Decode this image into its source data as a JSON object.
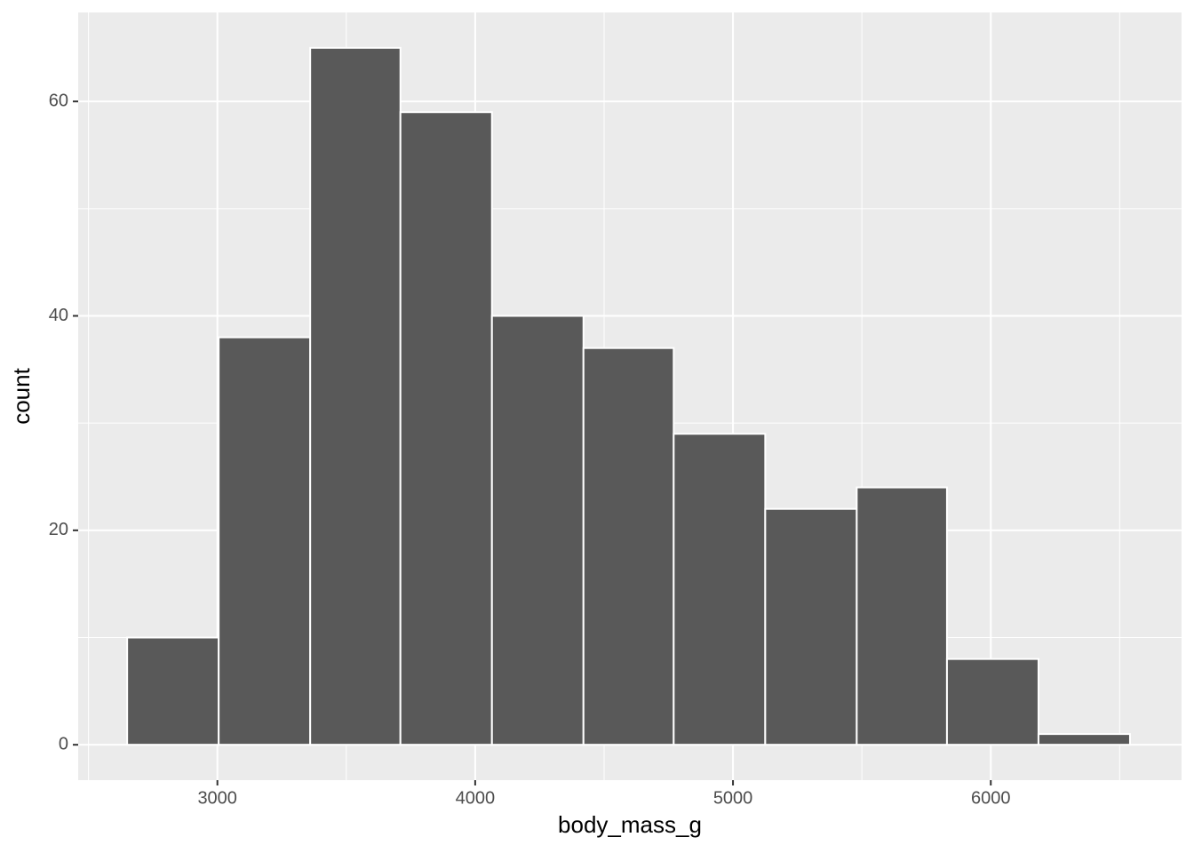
{
  "chart_data": {
    "type": "histogram",
    "x_label": "body_mass_g",
    "y_label": "count",
    "bins": [
      2650,
      3005,
      3360,
      3710,
      4065,
      4420,
      4770,
      5125,
      5480,
      5830,
      6185,
      6540
    ],
    "values": [
      10,
      38,
      65,
      59,
      40,
      37,
      29,
      22,
      24,
      8,
      1
    ],
    "color": "#595959",
    "xlim": [
      2460,
      6740
    ],
    "xticks": [
      3000,
      4000,
      5000,
      6000
    ],
    "ylim": [
      -3.3,
      68.3
    ],
    "yticks": [
      0,
      20,
      40,
      60
    ],
    "grid": true
  }
}
